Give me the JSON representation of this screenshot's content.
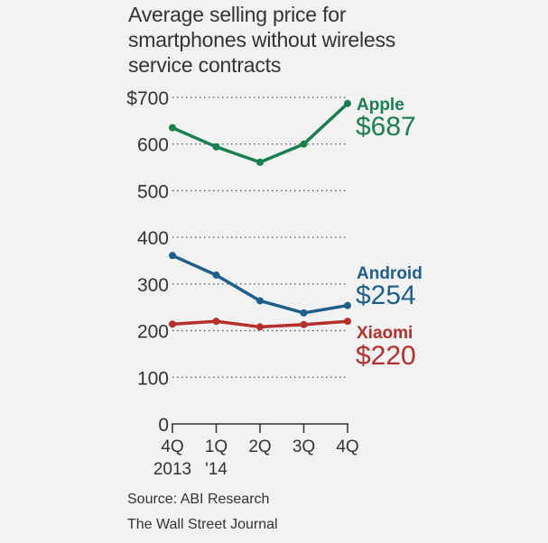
{
  "title": "Average selling price for smartphones without wireless service contracts",
  "source": "Source: ABI Research",
  "credit": "The Wall Street Journal",
  "chart_data": {
    "type": "line",
    "title": "Average selling price for smartphones without wireless service contracts",
    "categories": [
      [
        "4Q",
        "2013"
      ],
      [
        "1Q",
        "'14"
      ],
      [
        "2Q",
        ""
      ],
      [
        "3Q",
        ""
      ],
      [
        "4Q",
        ""
      ]
    ],
    "ylim": [
      0,
      700
    ],
    "yticks": [
      {
        "value": 0,
        "label": "0"
      },
      {
        "value": 100,
        "label": "100"
      },
      {
        "value": 200,
        "label": "200"
      },
      {
        "value": 300,
        "label": "300"
      },
      {
        "value": 400,
        "label": "400"
      },
      {
        "value": 500,
        "label": "500"
      },
      {
        "value": 600,
        "label": "600"
      },
      {
        "value": 700,
        "label": "$700"
      }
    ],
    "grid": true,
    "series": [
      {
        "name": "Apple",
        "value_label": "$687",
        "color": "#1a7f4e",
        "values": [
          635,
          594,
          561,
          600,
          687
        ]
      },
      {
        "name": "Android",
        "value_label": "$254",
        "color": "#1f5f8b",
        "values": [
          361,
          319,
          264,
          238,
          254
        ]
      },
      {
        "name": "Xiaomi",
        "value_label": "$220",
        "color": "#b5302a",
        "values": [
          214,
          220,
          208,
          213,
          220
        ]
      }
    ]
  }
}
